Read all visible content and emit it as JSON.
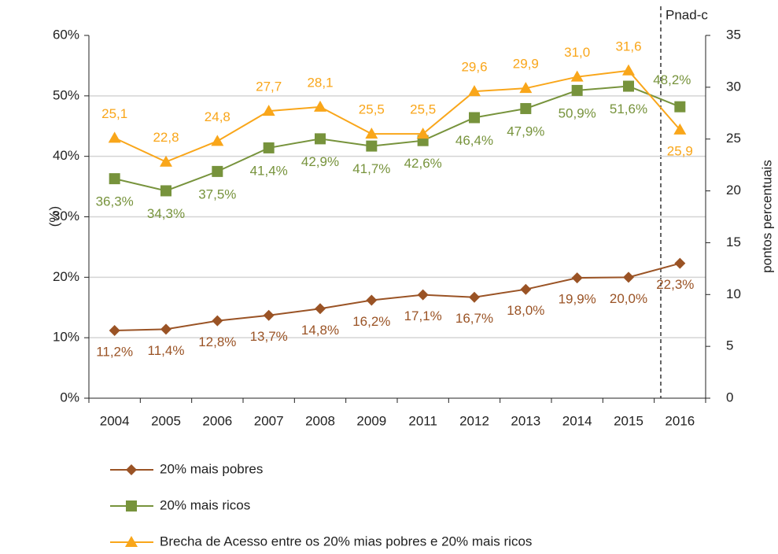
{
  "chart_data": {
    "type": "line",
    "ylabel": "(%)",
    "y2label": "pontos percentuais",
    "annotation": "Pnad-c",
    "categories": [
      "2004",
      "2005",
      "2006",
      "2007",
      "2008",
      "2009",
      "2011",
      "2012",
      "2013",
      "2014",
      "2015",
      "2016"
    ],
    "ylim": [
      0,
      60
    ],
    "yticks": [
      {
        "value": 0,
        "label": "0%"
      },
      {
        "value": 10,
        "label": "10%"
      },
      {
        "value": 20,
        "label": "20%"
      },
      {
        "value": 30,
        "label": "30%"
      },
      {
        "value": 40,
        "label": "40%"
      },
      {
        "value": 50,
        "label": "50%"
      },
      {
        "value": 60,
        "label": "60%"
      }
    ],
    "y2lim": [
      0,
      35
    ],
    "y2ticks": [
      0,
      5,
      10,
      15,
      20,
      25,
      30,
      35
    ],
    "grid": true,
    "series": [
      {
        "name": "20% mais pobres",
        "color": "#9a5325",
        "marker": "diamond",
        "values": [
          11.2,
          11.4,
          12.8,
          13.7,
          14.8,
          16.2,
          17.1,
          16.7,
          18.0,
          19.9,
          20.0,
          22.3
        ],
        "value_labels": [
          "11,2%",
          "11,4%",
          "12,8%",
          "13,7%",
          "14,8%",
          "16,2%",
          "17,1%",
          "16,7%",
          "18,0%",
          "19,9%",
          "20,0%",
          "22,3%"
        ]
      },
      {
        "name": "20% mais ricos",
        "color": "#77933c",
        "marker": "square",
        "values": [
          36.3,
          34.3,
          37.5,
          41.4,
          42.9,
          41.7,
          42.6,
          46.4,
          47.9,
          50.9,
          51.6,
          48.2
        ],
        "value_labels": [
          "36,3%",
          "34,3%",
          "37,5%",
          "41,4%",
          "42,9%",
          "41,7%",
          "42,6%",
          "46,4%",
          "47,9%",
          "50,9%",
          "51,6%",
          "48,2%"
        ]
      },
      {
        "name": "Brecha de Acesso entre os 20% mias pobres e 20% mais ricos",
        "color": "#f9a61a",
        "marker": "triangle",
        "axis": "y2",
        "values": [
          25.1,
          22.8,
          24.8,
          27.7,
          28.1,
          25.5,
          25.5,
          29.6,
          29.9,
          31.0,
          31.6,
          25.9
        ],
        "value_labels": [
          "25,1",
          "22,8",
          "24,8",
          "27,7",
          "28,1",
          "25,5",
          "25,5",
          "29,6",
          "29,9",
          "31,0",
          "31,6",
          "25,9"
        ]
      }
    ]
  }
}
